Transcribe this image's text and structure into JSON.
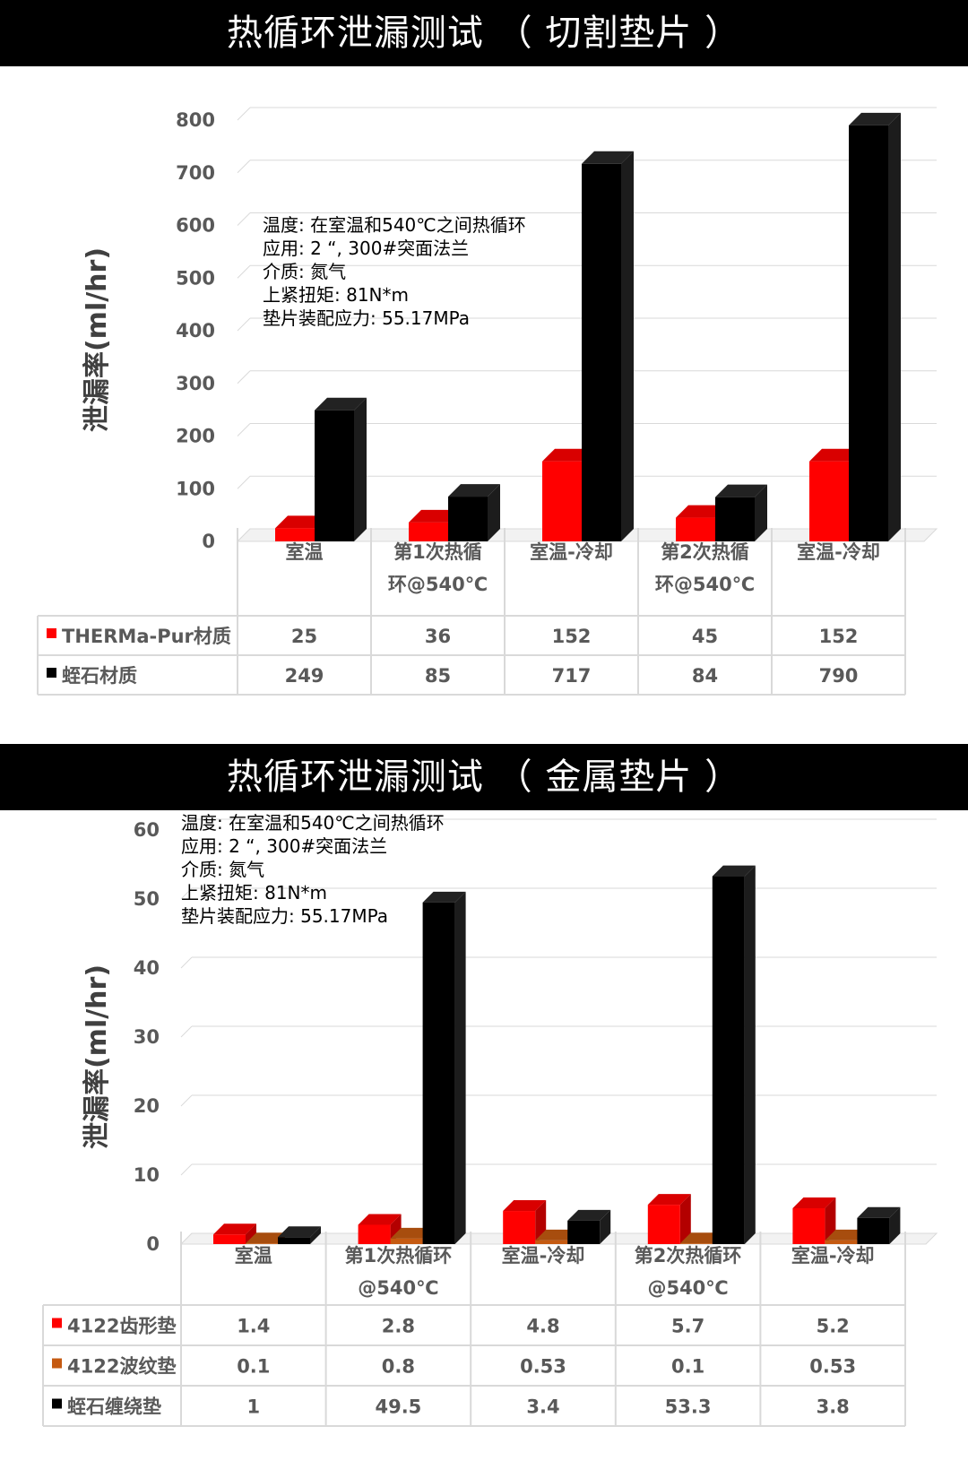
{
  "banner1": "热循环泄漏测试 （ 切割垫片 ）",
  "banner2": "热循环泄漏测试 （ 金属垫片 ）",
  "chart_data": [
    {
      "type": "bar",
      "title": "热循环泄漏测试 （ 切割垫片 ）",
      "ylabel": "泄漏率(ml/hr)",
      "ylim": [
        0,
        800
      ],
      "yticks": [
        0,
        100,
        200,
        300,
        400,
        500,
        600,
        700,
        800
      ],
      "grid": true,
      "categories": [
        [
          "室温"
        ],
        [
          "第1次热循",
          "环@540℃"
        ],
        [
          "室温-冷却"
        ],
        [
          "第2次热循",
          "环@540℃"
        ],
        [
          "室温-冷却"
        ]
      ],
      "series": [
        {
          "name": "THERMa-Pur材质",
          "color": "#ff0000",
          "values": [
            25,
            36,
            152,
            45,
            152
          ]
        },
        {
          "name": "蛭石材质",
          "color": "#000000",
          "values": [
            249,
            85,
            717,
            84,
            790
          ]
        }
      ],
      "annotation": [
        "温度: 在室温和540℃之间热循环",
        "应用: 2 “, 300#突面法兰",
        "介质: 氮气",
        "上紧扭矩: 81N*m",
        "垫片装配应力: 55.17MPa"
      ]
    },
    {
      "type": "bar",
      "title": "热循环泄漏测试 （ 金属垫片 ）",
      "ylabel": "泄漏率(ml/hr)",
      "ylim": [
        0,
        60
      ],
      "yticks": [
        0,
        10,
        20,
        30,
        40,
        50,
        60
      ],
      "grid": true,
      "categories": [
        [
          "室温"
        ],
        [
          "第1次热循环",
          "@540℃"
        ],
        [
          "室温-冷却"
        ],
        [
          "第2次热循环",
          "@540℃"
        ],
        [
          "室温-冷却"
        ]
      ],
      "series": [
        {
          "name": "4122齿形垫",
          "color": "#ff0000",
          "values": [
            1.4,
            2.8,
            4.8,
            5.7,
            5.2
          ]
        },
        {
          "name": "4122波纹垫",
          "color": "#c55a11",
          "values": [
            "0.1",
            "0.8",
            "0.53",
            "0.1",
            "0.53"
          ]
        },
        {
          "name": "蛭石缠绕垫",
          "color": "#000000",
          "values": [
            1,
            49.5,
            3.4,
            53.3,
            3.8
          ]
        }
      ],
      "annotation": [
        "温度: 在室温和540℃之间热循环",
        "应用: 2 “, 300#突面法兰",
        "介质: 氮气",
        "上紧扭矩: 81N*m",
        "垫片装配应力: 55.17MPa"
      ]
    }
  ]
}
